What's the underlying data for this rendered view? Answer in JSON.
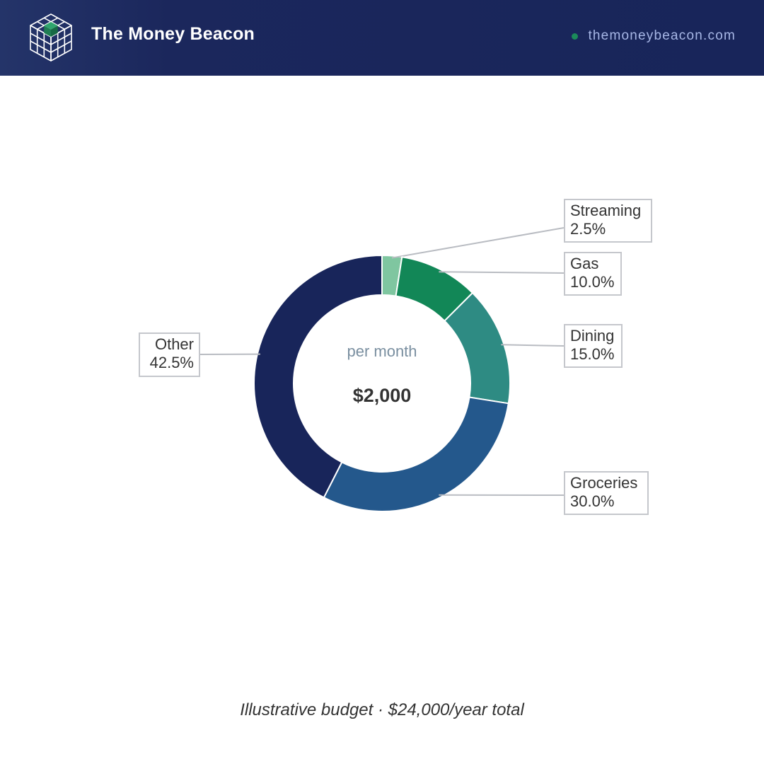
{
  "header": {
    "brand": "The Money Beacon",
    "site": "themoneybeacon.com",
    "dot_color": "#1b8a5a"
  },
  "chart_data": {
    "type": "pie",
    "donut": true,
    "center_label": "per month",
    "center_value": "$2,000",
    "categories": [
      "Streaming",
      "Gas",
      "Dining",
      "Groceries",
      "Other"
    ],
    "values": [
      2.5,
      10.0,
      15.0,
      30.0,
      42.5
    ],
    "value_labels": [
      "2.5%",
      "10.0%",
      "15.0%",
      "30.0%",
      "42.5%"
    ],
    "colors": [
      "#7fc6a0",
      "#128757",
      "#2e8b83",
      "#24588c",
      "#18255a"
    ]
  },
  "footnote": "Illustrative budget · $24,000/year total"
}
